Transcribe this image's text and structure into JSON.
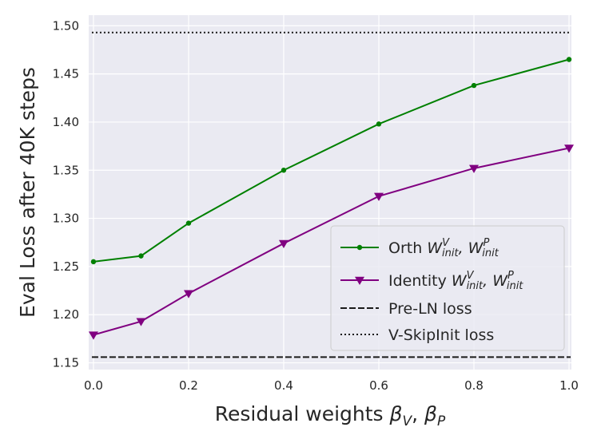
{
  "chart_data": {
    "type": "line",
    "xlabel": "Residual weights βV, βP",
    "ylabel": "Eval Loss after 40K steps",
    "xlim": [
      -0.01,
      1.005
    ],
    "ylim": [
      1.143,
      1.511
    ],
    "xticks": [
      0.0,
      0.2,
      0.4,
      0.6,
      0.8,
      1.0
    ],
    "xtick_labels": [
      "0.0",
      "0.2",
      "0.4",
      "0.6",
      "0.8",
      "1.0"
    ],
    "yticks": [
      1.15,
      1.2,
      1.25,
      1.3,
      1.35,
      1.4,
      1.45,
      1.5
    ],
    "ytick_labels": [
      "1.15",
      "1.20",
      "1.25",
      "1.30",
      "1.35",
      "1.40",
      "1.45",
      "1.50"
    ],
    "grid": true,
    "legend_position": "bottom-right",
    "background": "#eaeaf2",
    "series": [
      {
        "name": "Orth W^V_init, W^P_init",
        "legend_main": "Orth ",
        "legend_math": "W",
        "legend_sup1": "V",
        "legend_sub1": "init",
        "legend_sep": ", W",
        "legend_sup2": "P",
        "legend_sub2": "init",
        "color": "#008000",
        "marker": "dot",
        "x": [
          0.0,
          0.1,
          0.2,
          0.4,
          0.6,
          0.8,
          1.0
        ],
        "y": [
          1.255,
          1.261,
          1.295,
          1.35,
          1.398,
          1.438,
          1.465
        ]
      },
      {
        "name": "Identity W^V_init, W^P_init",
        "legend_main": "Identity ",
        "legend_math": "W",
        "legend_sup1": "V",
        "legend_sub1": "init",
        "legend_sep": ", W",
        "legend_sup2": "P",
        "legend_sub2": "init",
        "color": "#800080",
        "marker": "triangle-down",
        "x": [
          0.0,
          0.1,
          0.2,
          0.4,
          0.6,
          0.8,
          1.0
        ],
        "y": [
          1.179,
          1.193,
          1.222,
          1.274,
          1.323,
          1.352,
          1.373
        ]
      }
    ],
    "reference_lines": [
      {
        "name": "Pre-LN loss",
        "y": 1.156,
        "style": "dashed",
        "color": "#1a1a1a"
      },
      {
        "name": "V-SkipInit loss",
        "y": 1.493,
        "style": "dotted",
        "color": "#1a1a1a"
      }
    ]
  }
}
